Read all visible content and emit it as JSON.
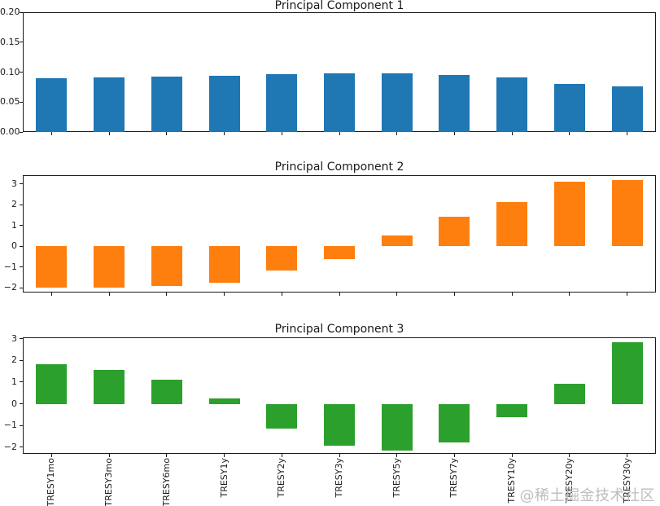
{
  "figure": {
    "background": "#ffffff",
    "axis_color": "#1a1a1a",
    "text_color": "#1a1a1a"
  },
  "watermark": {
    "text": "@稀土掘金技术社区",
    "color": "#bdbdbd"
  },
  "chart_data": [
    {
      "type": "bar",
      "title": "Principal Component 1",
      "bar_color": "#1f77b4",
      "categories": [
        "TRESY1mo",
        "TRESY3mo",
        "TRESY6mo",
        "TRESY1y",
        "TRESY2y",
        "TRESY3y",
        "TRESY5y",
        "TRESY7y",
        "TRESY10y",
        "TRESY20y",
        "TRESY30y"
      ],
      "values": [
        0.09,
        0.091,
        0.093,
        0.094,
        0.096,
        0.098,
        0.098,
        0.095,
        0.091,
        0.08,
        0.076
      ],
      "ylim": [
        0,
        0.2
      ],
      "yticks": [
        0,
        0.05,
        0.1,
        0.15,
        0.2
      ],
      "ytick_labels": [
        "0.00",
        "0.05",
        "0.10",
        "0.15",
        "0.20"
      ],
      "grid": false,
      "legend": "none",
      "show_x_labels": false
    },
    {
      "type": "bar",
      "title": "Principal Component 2",
      "bar_color": "#ff7f0e",
      "categories": [
        "TRESY1mo",
        "TRESY3mo",
        "TRESY6mo",
        "TRESY1y",
        "TRESY2y",
        "TRESY3y",
        "TRESY5y",
        "TRESY7y",
        "TRESY10y",
        "TRESY20y",
        "TRESY30y"
      ],
      "values": [
        -1.98,
        -1.97,
        -1.92,
        -1.75,
        -1.18,
        -0.6,
        0.53,
        1.41,
        2.13,
        3.13,
        3.2
      ],
      "ylim": [
        -2.22,
        3.43
      ],
      "yticks": [
        -2,
        -1,
        0,
        1,
        2,
        3
      ],
      "ytick_labels": [
        "−2",
        "−1",
        "0",
        "1",
        "2",
        "3"
      ],
      "grid": false,
      "legend": "none",
      "show_x_labels": false
    },
    {
      "type": "bar",
      "title": "Principal Component 3",
      "bar_color": "#2ca02c",
      "categories": [
        "TRESY1mo",
        "TRESY3mo",
        "TRESY6mo",
        "TRESY1y",
        "TRESY2y",
        "TRESY3y",
        "TRESY5y",
        "TRESY7y",
        "TRESY10y",
        "TRESY20y",
        "TRESY30y"
      ],
      "values": [
        1.82,
        1.56,
        1.1,
        0.25,
        -1.15,
        -1.94,
        -2.15,
        -1.78,
        -0.63,
        0.91,
        2.85
      ],
      "ylim": [
        -2.3,
        3.06
      ],
      "yticks": [
        -2,
        -1,
        0,
        1,
        2,
        3
      ],
      "ytick_labels": [
        "−2",
        "−1",
        "0",
        "1",
        "2",
        "3"
      ],
      "grid": false,
      "legend": "none",
      "show_x_labels": true
    }
  ]
}
